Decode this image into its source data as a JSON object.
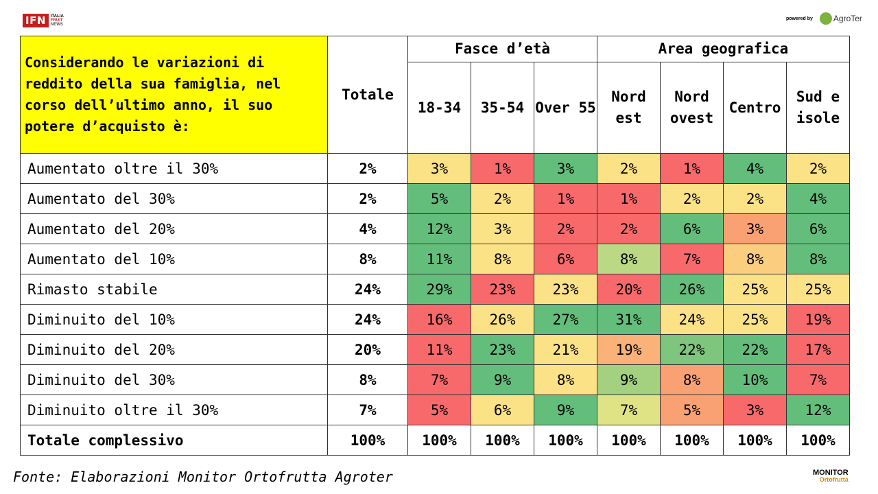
{
  "logos": {
    "ifn_box": "IFN",
    "ifn_lines": [
      "ITALIA",
      "FRUIT",
      "NEWS"
    ],
    "powered_by": "powered by",
    "agroter": "AgroTer",
    "monitor_top": "MONITOR",
    "monitor_bottom": "Ortofrutta"
  },
  "chart_data": {
    "type": "table",
    "question": "Considerando le variazioni di reddito della sua famiglia, nel corso dell’ultimo anno, il suo potere d’acquisto è:",
    "total_header": "Totale",
    "groups": [
      {
        "label": "Fasce d’età",
        "columns": [
          "18-34",
          "35-54",
          "Over 55"
        ]
      },
      {
        "label": "Area geografica",
        "columns": [
          "Nord est",
          "Nord ovest",
          "Centro",
          "Sud e isole"
        ]
      }
    ],
    "rows": [
      {
        "label": "Aumentato oltre il 30%",
        "total": "2%",
        "values": [
          "3%",
          "1%",
          "3%",
          "2%",
          "1%",
          "4%",
          "2%"
        ],
        "colors": [
          "#fbe287",
          "#f8696b",
          "#63be7b",
          "#fbe287",
          "#f8696b",
          "#63be7b",
          "#fbe287"
        ]
      },
      {
        "label": "Aumentato del 30%",
        "total": "2%",
        "values": [
          "5%",
          "2%",
          "1%",
          "1%",
          "2%",
          "2%",
          "4%"
        ],
        "colors": [
          "#63be7b",
          "#fbe287",
          "#f8696b",
          "#f8696b",
          "#fbe287",
          "#fbe287",
          "#63be7b"
        ]
      },
      {
        "label": "Aumentato del 20%",
        "total": "4%",
        "values": [
          "12%",
          "3%",
          "2%",
          "2%",
          "6%",
          "3%",
          "6%"
        ],
        "colors": [
          "#63be7b",
          "#fbe287",
          "#f8696b",
          "#f8696b",
          "#63be7b",
          "#f9a173",
          "#63be7b"
        ]
      },
      {
        "label": "Aumentato del 10%",
        "total": "8%",
        "values": [
          "11%",
          "8%",
          "6%",
          "8%",
          "7%",
          "8%",
          "8%"
        ],
        "colors": [
          "#63be7b",
          "#fbe287",
          "#f8696b",
          "#bbd884",
          "#f8696b",
          "#fbcd7e",
          "#63be7b"
        ]
      },
      {
        "label": "Rimasto stabile",
        "total": "24%",
        "values": [
          "29%",
          "23%",
          "23%",
          "20%",
          "26%",
          "25%",
          "25%"
        ],
        "colors": [
          "#63be7b",
          "#f8696b",
          "#fbe287",
          "#f8696b",
          "#63be7b",
          "#fbe287",
          "#fbe287"
        ]
      },
      {
        "label": "Diminuito del 10%",
        "total": "24%",
        "values": [
          "16%",
          "26%",
          "27%",
          "31%",
          "24%",
          "25%",
          "19%"
        ],
        "colors": [
          "#f8696b",
          "#fbe287",
          "#63be7b",
          "#63be7b",
          "#fbe287",
          "#fbe287",
          "#f8696b"
        ]
      },
      {
        "label": "Diminuito del 20%",
        "total": "20%",
        "values": [
          "11%",
          "23%",
          "21%",
          "19%",
          "22%",
          "22%",
          "17%"
        ],
        "colors": [
          "#f8696b",
          "#63be7b",
          "#fbe287",
          "#fab279",
          "#7ec57d",
          "#63be7b",
          "#f8696b"
        ]
      },
      {
        "label": "Diminuito del 30%",
        "total": "8%",
        "values": [
          "7%",
          "9%",
          "8%",
          "9%",
          "8%",
          "10%",
          "7%"
        ],
        "colors": [
          "#f8696b",
          "#63be7b",
          "#fbe287",
          "#a3d17f",
          "#f9a173",
          "#63be7b",
          "#f8696b"
        ]
      },
      {
        "label": "Diminuito oltre il 30%",
        "total": "7%",
        "values": [
          "5%",
          "6%",
          "9%",
          "7%",
          "5%",
          "3%",
          "12%"
        ],
        "colors": [
          "#f8696b",
          "#fbe287",
          "#63be7b",
          "#dfe285",
          "#f9a173",
          "#f8696b",
          "#63be7b"
        ]
      }
    ],
    "total_row": {
      "label": "Totale complessivo",
      "total": "100%",
      "values": [
        "100%",
        "100%",
        "100%",
        "100%",
        "100%",
        "100%",
        "100%"
      ]
    }
  },
  "source": "Fonte: Elaborazioni Monitor Ortofrutta Agroter"
}
